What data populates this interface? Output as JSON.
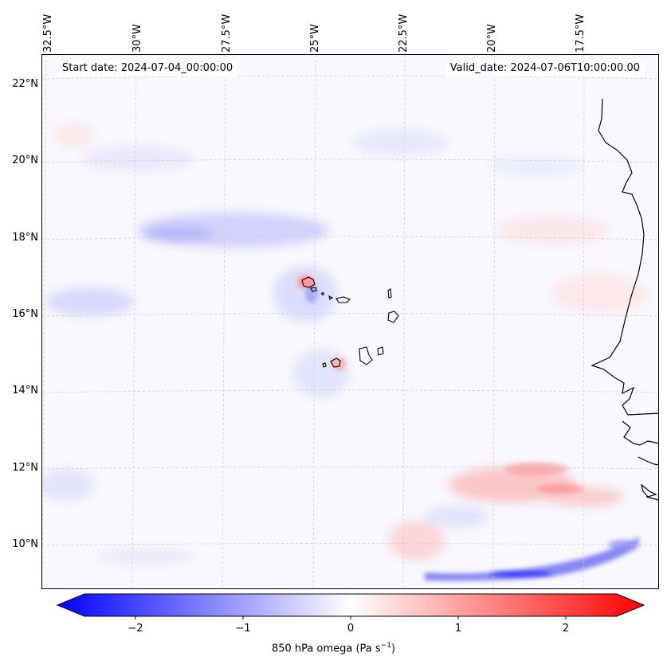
{
  "map": {
    "start_date": "Start date: 2024-07-04_00:00:00",
    "valid_date": "Valid_date: 2024-07-06T10:00:00.00",
    "lon_labels": [
      "32.5°W",
      "30°W",
      "27.5°W",
      "25°W",
      "22.5°W",
      "20°W",
      "17.5°W"
    ],
    "lat_labels": [
      "22°N",
      "20°N",
      "18°N",
      "16°N",
      "14°N",
      "12°N",
      "10°N"
    ],
    "coastline_color": "#000000",
    "gridline_color": "#cccccc"
  },
  "colorbar": {
    "ticks": [
      "−2",
      "−1",
      "0",
      "1",
      "2"
    ],
    "range": [
      -2.7,
      2.7
    ],
    "label_text": "850 hPa omega (Pa s",
    "label_exponent": "−1",
    "label_close": ")",
    "color_min": "#0000ff",
    "color_mid": "#ffffff",
    "color_max": "#ff0000"
  }
}
